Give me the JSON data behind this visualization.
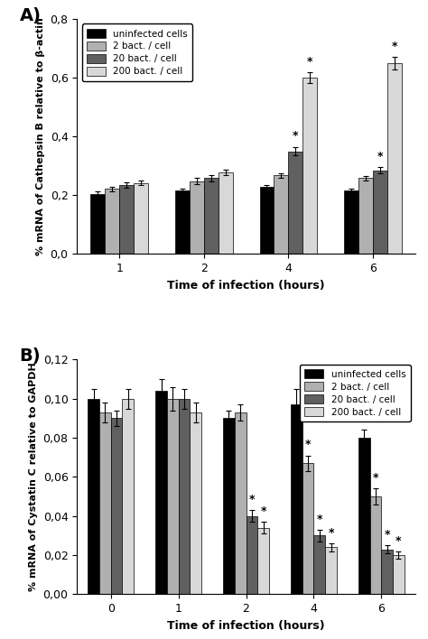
{
  "panel_A": {
    "title": "A)",
    "xlabel": "Time of infection (hours)",
    "ylabel": "% mRNA of Cathepsin B relative to β-actin",
    "ylim": [
      0.0,
      0.8
    ],
    "yticks": [
      0.0,
      0.2,
      0.4,
      0.6,
      0.8
    ],
    "yticklabels": [
      "0,0",
      "0,2",
      "0,4",
      "0,6",
      "0,8"
    ],
    "xtick_labels": [
      "1",
      "2",
      "4",
      "6"
    ],
    "bar_width": 0.17,
    "colors": [
      "#000000",
      "#b0b0b0",
      "#606060",
      "#d8d8d8"
    ],
    "values": [
      [
        0.205,
        0.215,
        0.228,
        0.215
      ],
      [
        0.222,
        0.248,
        0.268,
        0.258
      ],
      [
        0.235,
        0.258,
        0.35,
        0.285
      ],
      [
        0.242,
        0.278,
        0.6,
        0.65
      ]
    ],
    "errors": [
      [
        0.008,
        0.008,
        0.008,
        0.008
      ],
      [
        0.008,
        0.01,
        0.008,
        0.008
      ],
      [
        0.01,
        0.01,
        0.015,
        0.01
      ],
      [
        0.008,
        0.01,
        0.018,
        0.022
      ]
    ],
    "stars": [
      [
        false,
        false,
        false,
        false
      ],
      [
        false,
        false,
        false,
        false
      ],
      [
        false,
        false,
        true,
        true
      ],
      [
        false,
        false,
        true,
        true
      ]
    ],
    "legend_labels": [
      "uninfected cells",
      "2 bact. / cell",
      "20 bact. / cell",
      "200 bact. / cell"
    ],
    "legend_loc": "upper left"
  },
  "panel_B": {
    "title": "B)",
    "xlabel": "Time of infection (hours)",
    "ylabel": "% mRNA of Cystatin C relative to GAPDH",
    "ylim": [
      0.0,
      0.12
    ],
    "yticks": [
      0.0,
      0.02,
      0.04,
      0.06,
      0.08,
      0.1,
      0.12
    ],
    "yticklabels": [
      "0,00",
      "0,02",
      "0,04",
      "0,06",
      "0,08",
      "0,10",
      "0,12"
    ],
    "xtick_labels": [
      "0",
      "1",
      "2",
      "4",
      "6"
    ],
    "bar_width": 0.17,
    "colors": [
      "#000000",
      "#b0b0b0",
      "#606060",
      "#d8d8d8"
    ],
    "values": [
      [
        0.1,
        0.104,
        0.09,
        0.097,
        0.08
      ],
      [
        0.093,
        0.1,
        0.093,
        0.067,
        0.05
      ],
      [
        0.09,
        0.1,
        0.04,
        0.03,
        0.023
      ],
      [
        0.1,
        0.093,
        0.034,
        0.024,
        0.02
      ]
    ],
    "errors": [
      [
        0.005,
        0.006,
        0.004,
        0.008,
        0.004
      ],
      [
        0.005,
        0.006,
        0.004,
        0.004,
        0.004
      ],
      [
        0.004,
        0.005,
        0.003,
        0.003,
        0.002
      ],
      [
        0.005,
        0.005,
        0.003,
        0.002,
        0.002
      ]
    ],
    "stars": [
      [
        false,
        false,
        false,
        false,
        false
      ],
      [
        false,
        false,
        false,
        true,
        true
      ],
      [
        false,
        false,
        true,
        true,
        true
      ],
      [
        false,
        false,
        true,
        true,
        true
      ]
    ],
    "legend_labels": [
      "uninfected cells",
      "2 bact. / cell",
      "20 bact. / cell",
      "200 bact. / cell"
    ],
    "legend_loc": "upper right"
  }
}
